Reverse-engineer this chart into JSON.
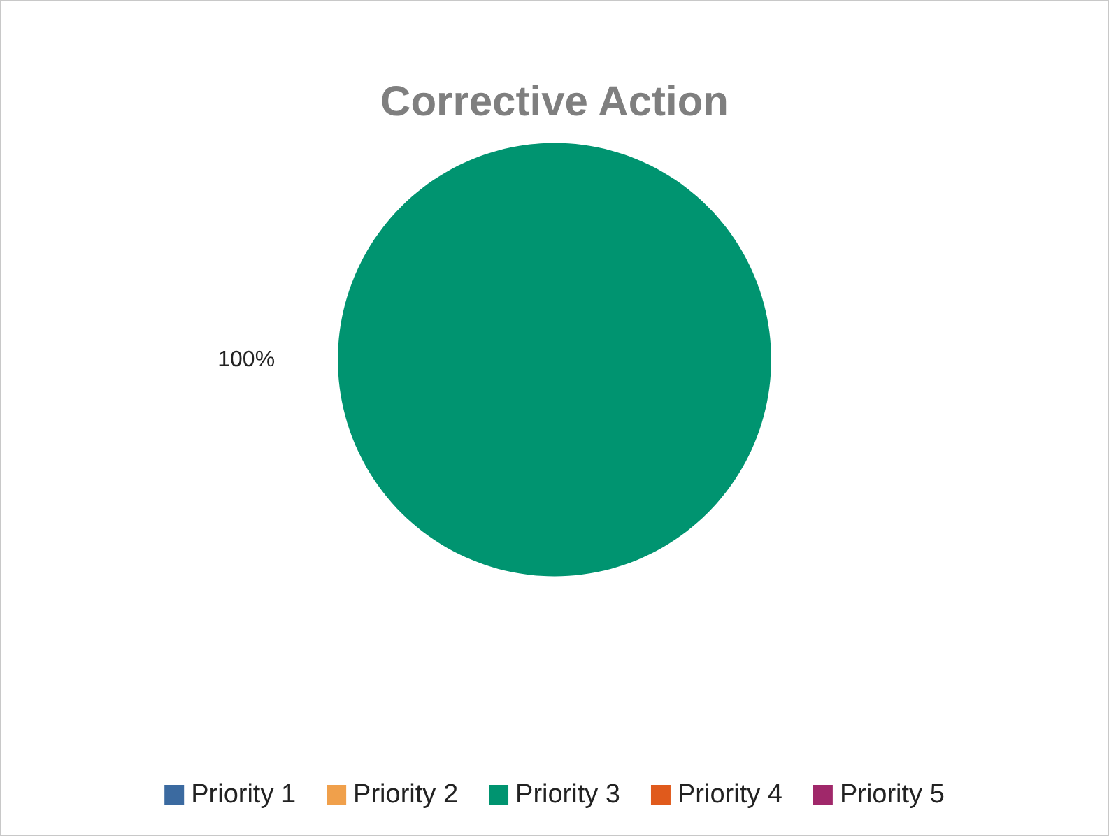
{
  "chart_data": {
    "type": "pie",
    "title": "Corrective Action",
    "categories": [
      "Priority 1",
      "Priority 2",
      "Priority 3",
      "Priority 4",
      "Priority 5"
    ],
    "values": [
      0,
      0,
      100,
      0,
      0
    ],
    "colors": [
      "#3b6aa0",
      "#f0a04b",
      "#009470",
      "#e05a1c",
      "#a0286a"
    ],
    "value_labels": [
      null,
      null,
      "100%",
      null,
      null
    ],
    "legend": "bottom"
  }
}
